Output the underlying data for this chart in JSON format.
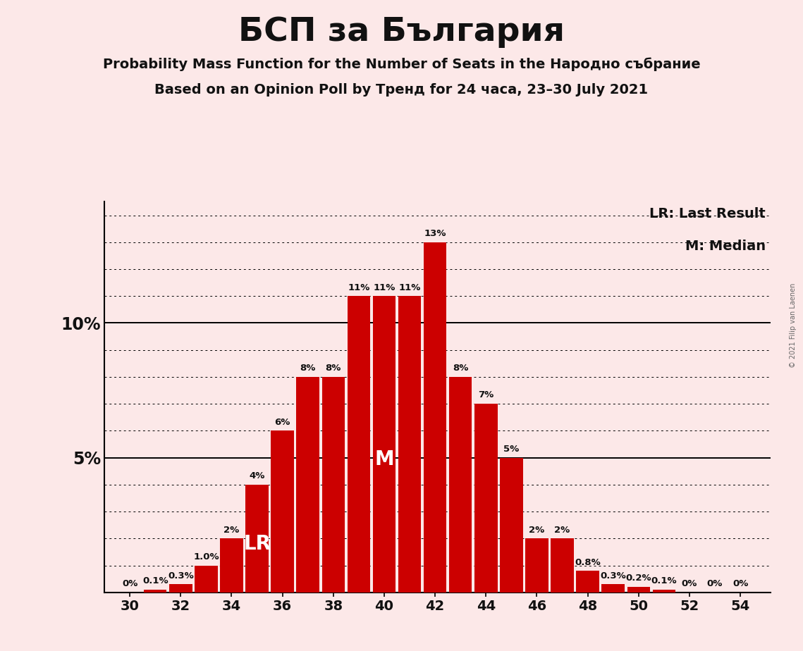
{
  "title": "БСП за България",
  "subtitle1": "Probability Mass Function for the Number of Seats in the Народно събрание",
  "subtitle2": "Based on an Opinion Poll by Тренд for 24 часа, 23–30 July 2021",
  "copyright": "© 2021 Filip van Laenen",
  "seats": [
    30,
    31,
    32,
    33,
    34,
    35,
    36,
    37,
    38,
    39,
    40,
    41,
    42,
    43,
    44,
    45,
    46,
    47,
    48,
    49,
    50,
    51,
    52,
    53,
    54
  ],
  "probabilities": [
    0.0,
    0.1,
    0.3,
    1.0,
    2.0,
    4.0,
    6.0,
    8.0,
    8.0,
    11.0,
    11.0,
    11.0,
    13.0,
    8.0,
    7.0,
    5.0,
    2.0,
    2.0,
    0.8,
    0.3,
    0.2,
    0.1,
    0.0,
    0.0,
    0.0
  ],
  "bar_labels": [
    "0%",
    "0.1%",
    "0.3%",
    "1.0%",
    "2%",
    "4%",
    "6%",
    "8%",
    "8%",
    "11%",
    "11%",
    "11%",
    "13%",
    "8%",
    "7%",
    "5%",
    "2%",
    "2%",
    "0.8%",
    "0.3%",
    "0.2%",
    "0.1%",
    "0%",
    "0%",
    "0%"
  ],
  "bar_color": "#cc0000",
  "background_color": "#fce8e8",
  "lr_seat": 35,
  "median_seat": 40,
  "ylim": [
    0,
    14.5
  ],
  "lr_label": "LR",
  "median_label": "M",
  "legend_lr": "LR: Last Result",
  "legend_m": "M: Median",
  "title_fontsize": 34,
  "subtitle_fontsize": 14,
  "bar_label_fontsize": 9.5,
  "axis_tick_fontsize": 14,
  "ytick_fontsize": 17,
  "legend_fontsize": 14,
  "inbar_fontsize": 20
}
